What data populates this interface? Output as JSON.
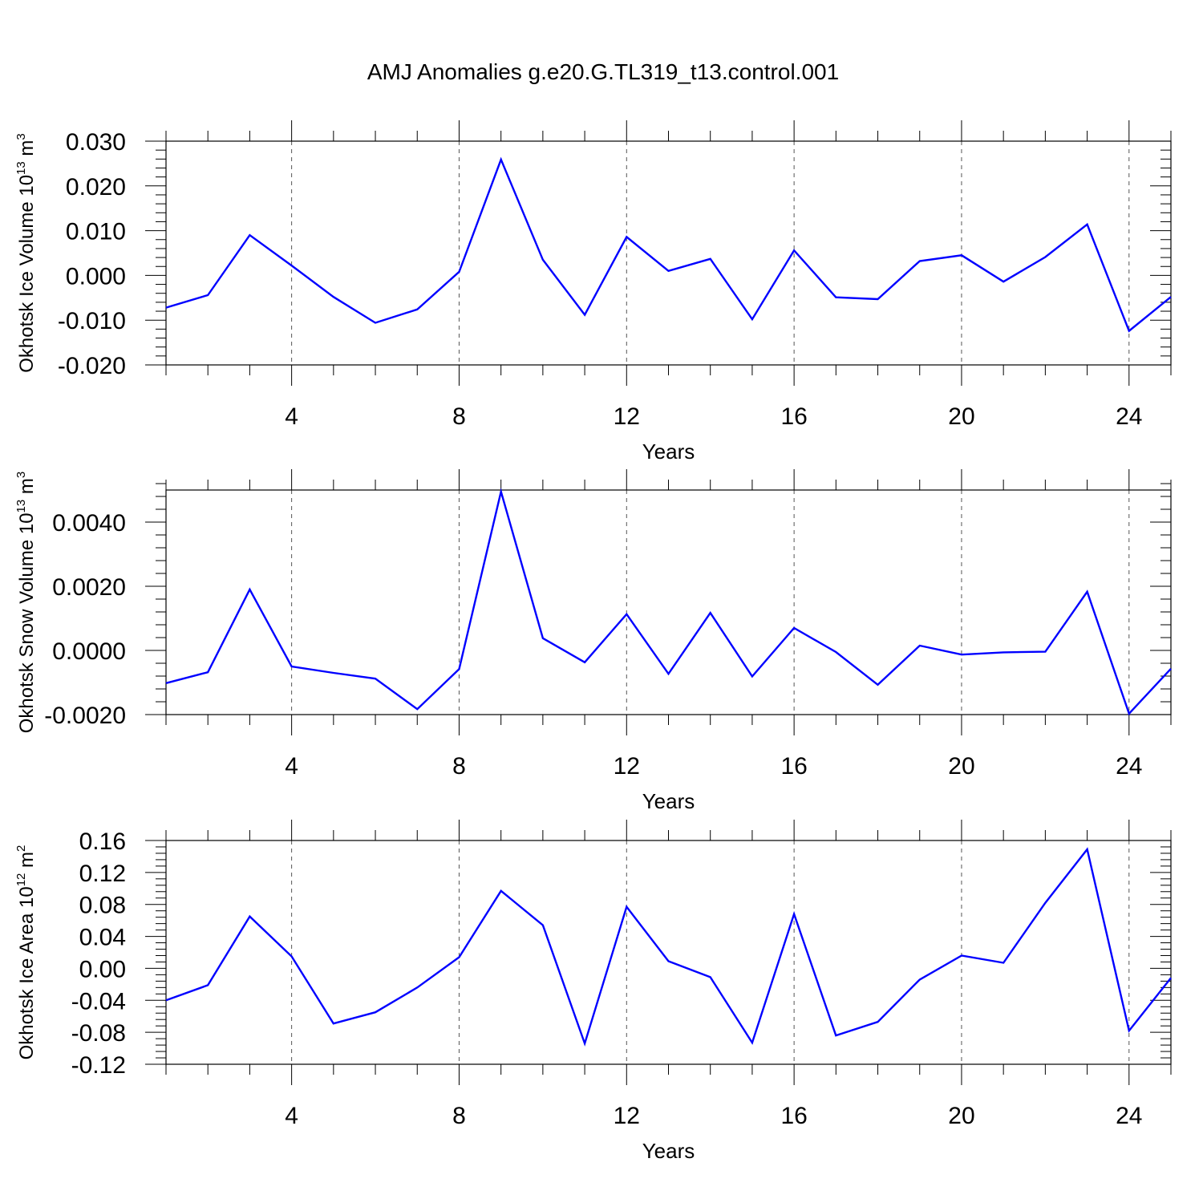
{
  "title": "AMJ Anomalies g.e20.G.TL319_t13.control.001",
  "colors": {
    "series": "#0000ff",
    "grid": "#555555",
    "axis": "#000000"
  },
  "chart_data": [
    {
      "type": "line",
      "xlabel": "Years",
      "ylabel": {
        "text": "Okhotsk Ice Volume 10",
        "sup": "13",
        "unit": " m",
        "unit_sup": "3"
      },
      "xlim": [
        1,
        25
      ],
      "ylim": [
        -0.02,
        0.03
      ],
      "xticks": [
        4,
        8,
        12,
        16,
        20,
        24
      ],
      "yticks": [
        -0.02,
        -0.01,
        0.0,
        0.01,
        0.02,
        0.03
      ],
      "ytick_labels": [
        "-0.020",
        "-0.010",
        "0.000",
        "0.010",
        "0.020",
        "0.030"
      ],
      "yminor_step": 0.002,
      "grid": "dashed vertical at major x ticks",
      "x": [
        1,
        2,
        3,
        4,
        5,
        6,
        7,
        8,
        9,
        10,
        11,
        12,
        13,
        14,
        15,
        16,
        17,
        18,
        19,
        20,
        21,
        22,
        23,
        24,
        25
      ],
      "values": [
        -0.0072,
        -0.0044,
        0.009,
        0.0022,
        -0.0048,
        -0.0106,
        -0.0076,
        0.0008,
        0.0259,
        0.0035,
        -0.0088,
        0.0086,
        0.001,
        0.0037,
        -0.0098,
        0.0056,
        -0.0049,
        -0.0053,
        0.0032,
        0.0045,
        -0.0014,
        0.0041,
        0.0114,
        -0.0124,
        -0.0048
      ]
    },
    {
      "type": "line",
      "xlabel": "Years",
      "ylabel": {
        "text": "Okhotsk Snow Volume 10",
        "sup": "13",
        "unit": " m",
        "unit_sup": "3"
      },
      "xlim": [
        1,
        25
      ],
      "ylim": [
        -0.002,
        0.005
      ],
      "xticks": [
        4,
        8,
        12,
        16,
        20,
        24
      ],
      "yticks": [
        -0.002,
        0.0,
        0.002,
        0.004
      ],
      "ytick_labels": [
        "-0.0020",
        "0.0000",
        "0.0020",
        "0.0040"
      ],
      "yminor_step": 0.0004,
      "grid": "dashed vertical at major x ticks",
      "x": [
        1,
        2,
        3,
        4,
        5,
        6,
        7,
        8,
        9,
        10,
        11,
        12,
        13,
        14,
        15,
        16,
        17,
        18,
        19,
        20,
        21,
        22,
        23,
        24,
        25
      ],
      "values": [
        -0.00102,
        -0.00068,
        0.0019,
        -0.0005,
        -0.0007,
        -0.00088,
        -0.00183,
        -0.00058,
        0.00495,
        0.00038,
        -0.00037,
        0.00113,
        -0.00073,
        0.00117,
        -0.00081,
        0.0007,
        -5e-05,
        -0.00107,
        0.00015,
        -0.00013,
        -6e-05,
        -4e-05,
        0.00183,
        -0.00197,
        -0.00057
      ]
    },
    {
      "type": "line",
      "xlabel": "Years",
      "ylabel": {
        "text": "Okhotsk Ice Area 10",
        "sup": "12",
        "unit": " m",
        "unit_sup": "2"
      },
      "xlim": [
        1,
        25
      ],
      "ylim": [
        -0.12,
        0.16
      ],
      "xticks": [
        4,
        8,
        12,
        16,
        20,
        24
      ],
      "yticks": [
        -0.12,
        -0.08,
        -0.04,
        0.0,
        0.04,
        0.08,
        0.12,
        0.16
      ],
      "ytick_labels": [
        "-0.12",
        "-0.08",
        "-0.04",
        "0.00",
        "0.04",
        "0.08",
        "0.12",
        "0.16"
      ],
      "yminor_step": 0.008,
      "grid": "dashed vertical at major x ticks",
      "x": [
        1,
        2,
        3,
        4,
        5,
        6,
        7,
        8,
        9,
        10,
        11,
        12,
        13,
        14,
        15,
        16,
        17,
        18,
        19,
        20,
        21,
        22,
        23,
        24,
        25
      ],
      "values": [
        -0.04,
        -0.021,
        0.065,
        0.015,
        -0.069,
        -0.055,
        -0.024,
        0.014,
        0.097,
        0.054,
        -0.094,
        0.077,
        0.009,
        -0.011,
        -0.093,
        0.068,
        -0.084,
        -0.067,
        -0.014,
        0.016,
        0.007,
        0.082,
        0.149,
        -0.078,
        -0.012
      ]
    }
  ]
}
